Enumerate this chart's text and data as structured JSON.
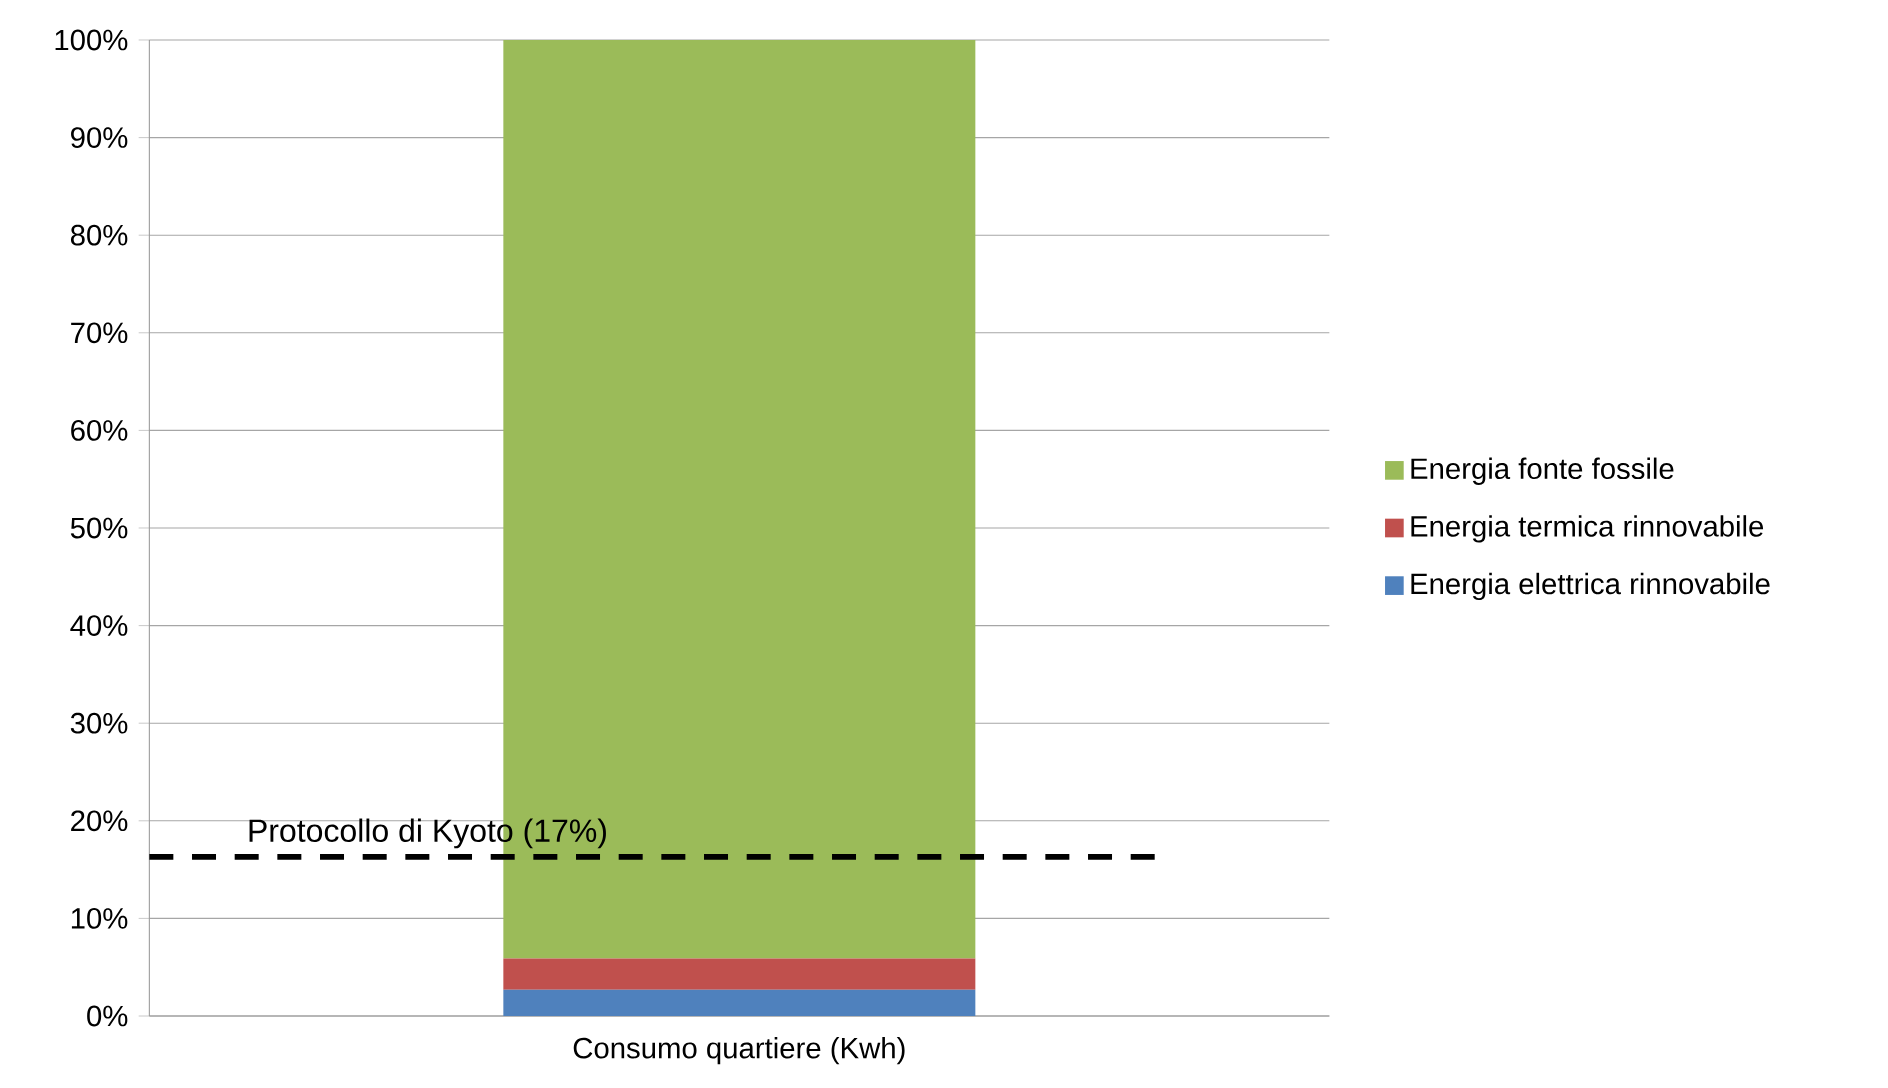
{
  "chart_data": {
    "type": "bar",
    "stacked": true,
    "categories": [
      "Consumo quartiere (Kwh)"
    ],
    "series": [
      {
        "name": "Energia elettrica rinnovabile",
        "color": "#4f81bd",
        "values": [
          2.7
        ]
      },
      {
        "name": "Energia termica rinnovabile",
        "color": "#c0504d",
        "values": [
          3.2
        ]
      },
      {
        "name": "Energia fonte fossile",
        "color": "#9bbb59",
        "values": [
          94.1
        ]
      }
    ],
    "ylim": [
      0,
      100
    ],
    "yticks": [
      {
        "value": 0,
        "label": "0%"
      },
      {
        "value": 10,
        "label": "10%"
      },
      {
        "value": 20,
        "label": "20%"
      },
      {
        "value": 30,
        "label": "30%"
      },
      {
        "value": 40,
        "label": "40%"
      },
      {
        "value": 50,
        "label": "50%"
      },
      {
        "value": 60,
        "label": "60%"
      },
      {
        "value": 70,
        "label": "70%"
      },
      {
        "value": 80,
        "label": "80%"
      },
      {
        "value": 90,
        "label": "90%"
      },
      {
        "value": 100,
        "label": "100%"
      }
    ],
    "grid": "y",
    "legend": "right",
    "ref_lines": [
      {
        "axis": "y",
        "value": 16.3,
        "label": "Protocollo di Kyoto (17%)",
        "color": "#000000",
        "line_style": "dashed"
      }
    ]
  }
}
